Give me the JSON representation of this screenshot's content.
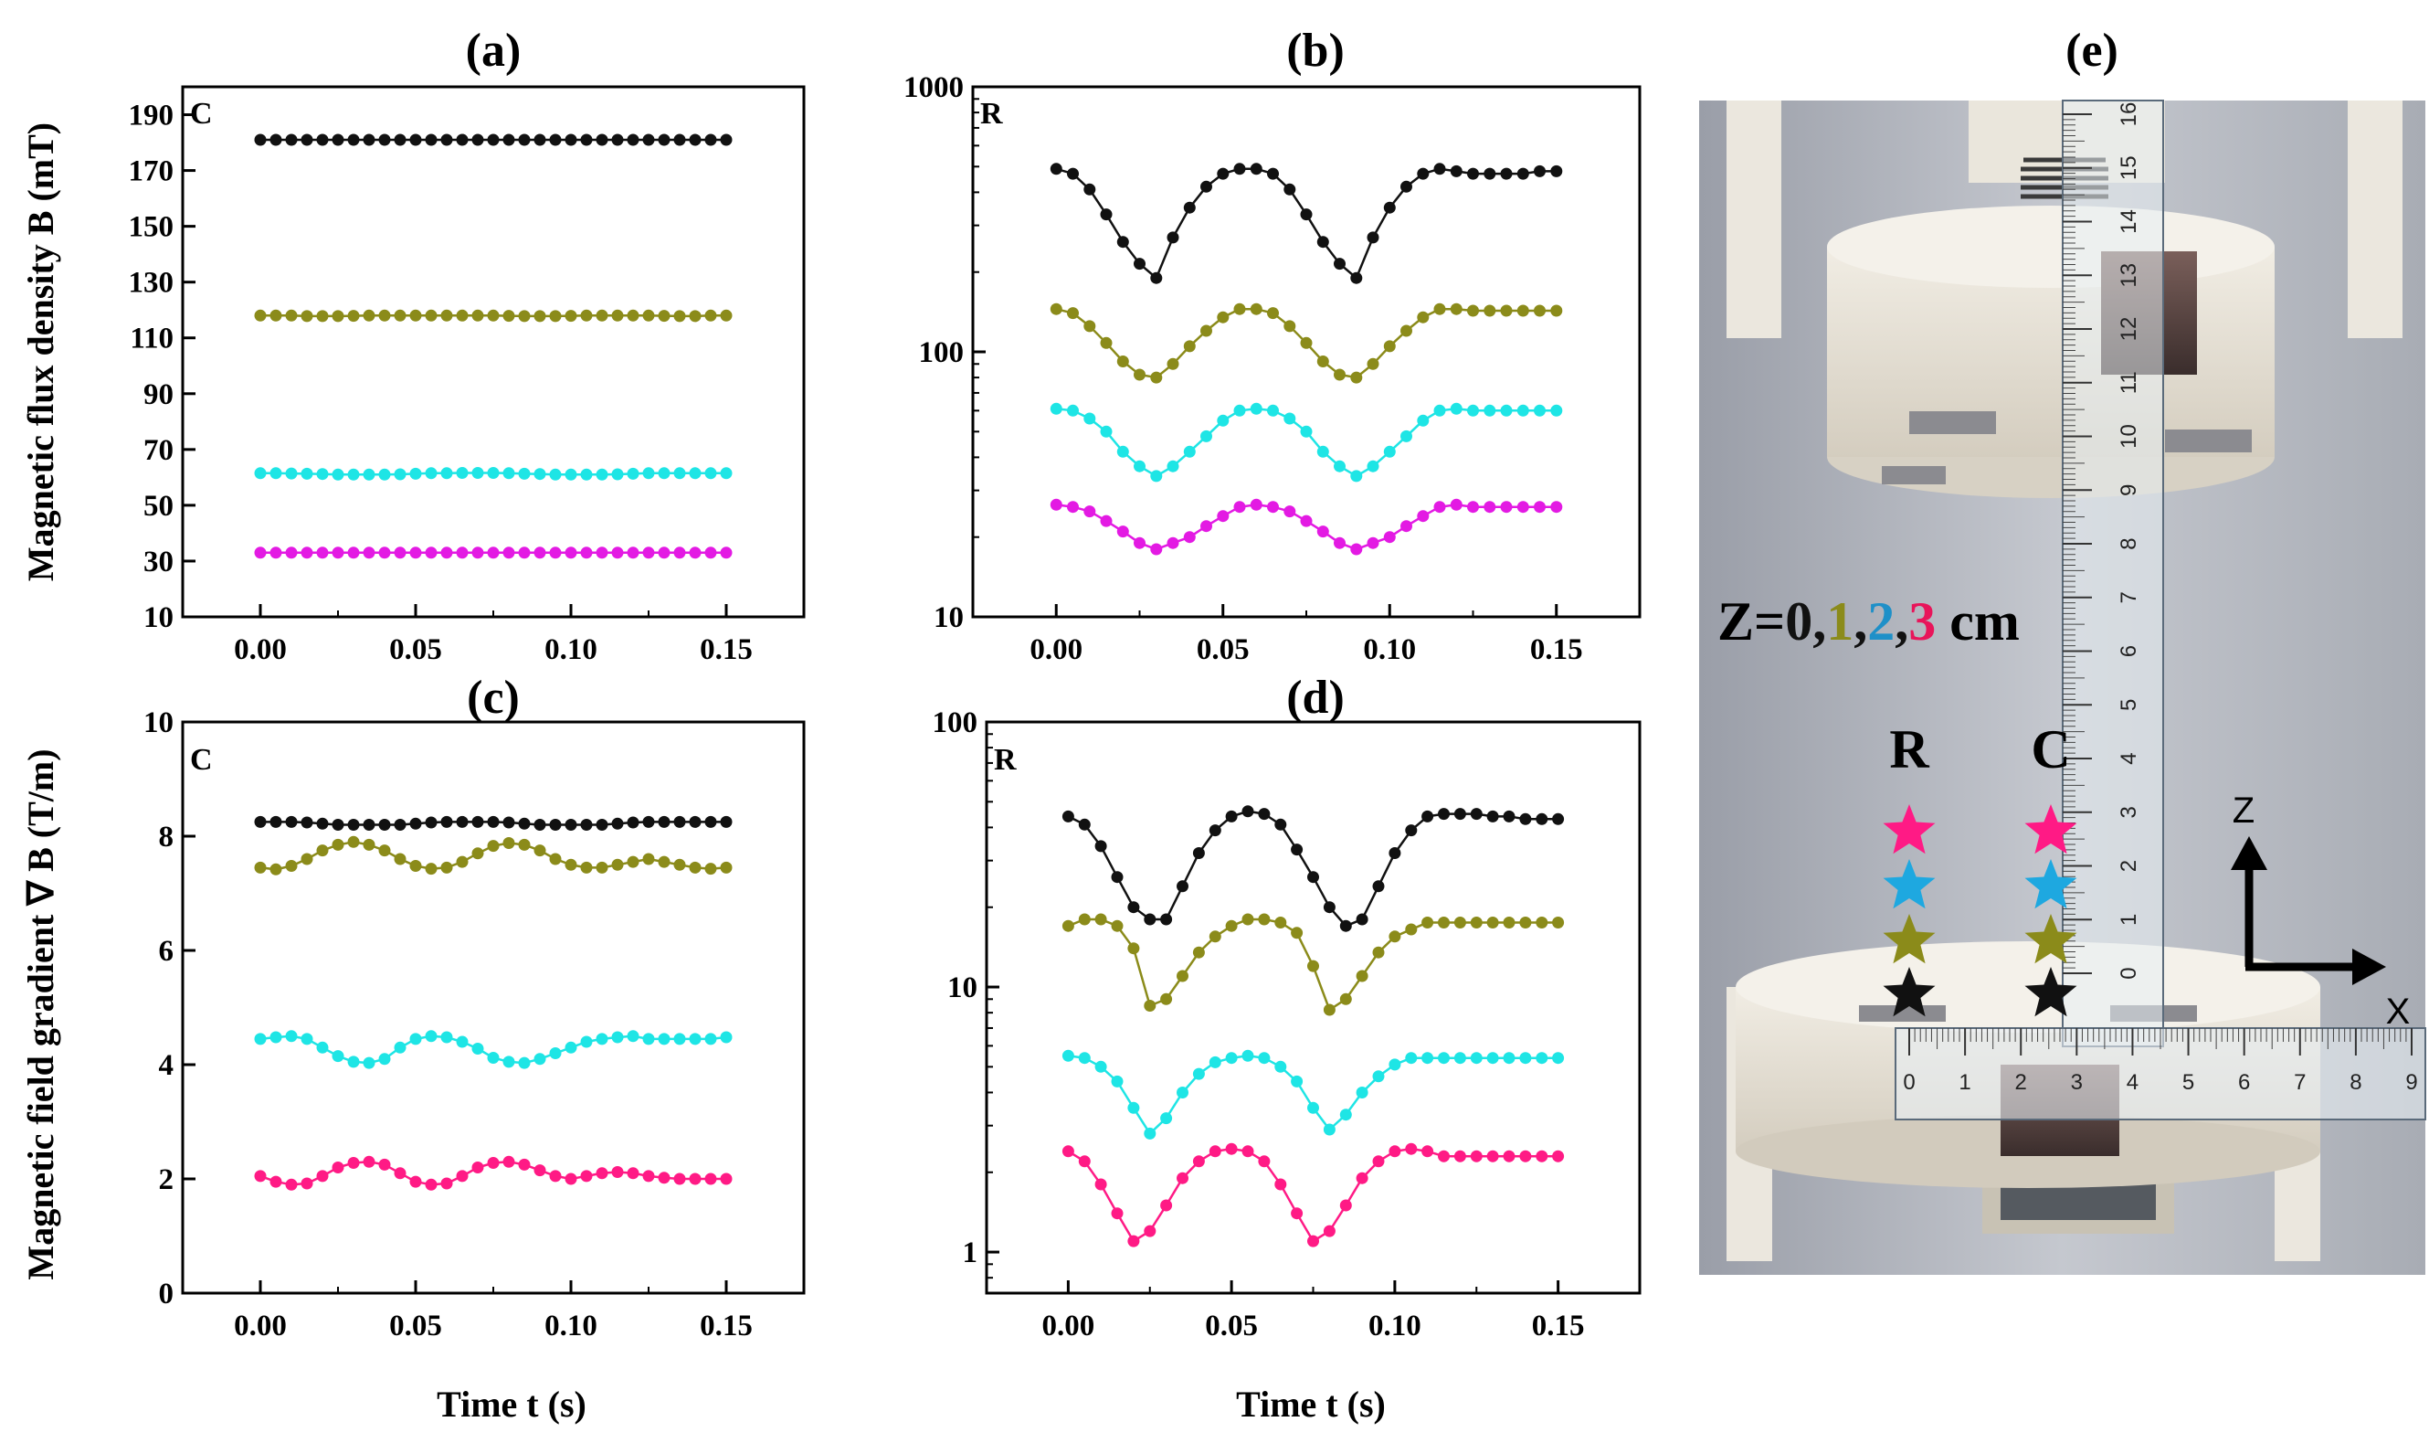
{
  "chart_data": [
    {
      "id": "a",
      "type": "line",
      "panel_label": "(a)",
      "corner_label": "C",
      "title": "",
      "xlabel": "",
      "ylabel": "Magnetic flux density B (mT)",
      "yscale": "linear",
      "xlim": [
        -0.025,
        0.175
      ],
      "ylim": [
        10,
        200
      ],
      "xticks": [
        0.0,
        0.05,
        0.1,
        0.15
      ],
      "xtick_labels": [
        "0.00",
        "0.05",
        "0.10",
        "0.15"
      ],
      "yticks": [
        10,
        30,
        50,
        70,
        90,
        110,
        130,
        150,
        170,
        190
      ],
      "ytick_labels": [
        "10",
        "30",
        "50",
        "70",
        "90",
        "110",
        "130",
        "150",
        "170",
        "190"
      ],
      "x_start": 0.0,
      "x_step": 0.005,
      "n_points": 31,
      "series": [
        {
          "name": "Z=0 cm",
          "color": "#111111",
          "values": [
            181,
            181,
            181,
            181,
            181,
            181,
            181,
            181,
            181,
            181,
            181,
            181,
            181,
            181,
            181,
            181,
            181,
            181,
            181,
            181,
            181,
            181,
            181,
            181,
            181,
            181,
            181,
            181,
            181,
            181,
            181
          ]
        },
        {
          "name": "Z=1 cm",
          "color": "#8b8b1a",
          "values": [
            118,
            118,
            118,
            117.8,
            117.8,
            117.8,
            117.9,
            118,
            118,
            118,
            118,
            118,
            118,
            118,
            118,
            118,
            117.9,
            117.8,
            117.8,
            117.8,
            117.9,
            118,
            118,
            118,
            118,
            118,
            117.9,
            117.8,
            117.8,
            118,
            118
          ]
        },
        {
          "name": "Z=2 cm",
          "color": "#1ee5e5",
          "values": [
            61.5,
            61.5,
            61.4,
            61.3,
            61.2,
            61,
            61,
            61,
            61,
            61.1,
            61.3,
            61.5,
            61.5,
            61.6,
            61.6,
            61.6,
            61.5,
            61.3,
            61.2,
            61,
            61,
            61,
            61,
            61.1,
            61.3,
            61.5,
            61.5,
            61.5,
            61.5,
            61.5,
            61.5
          ]
        },
        {
          "name": "Z=3 cm",
          "color": "#e31ae3",
          "values": [
            33,
            33,
            33,
            33,
            33,
            33,
            33,
            33,
            33,
            33,
            33,
            33,
            33,
            33,
            33,
            33,
            33,
            33,
            33,
            33,
            33,
            33,
            33,
            33,
            33,
            33,
            33,
            33,
            33,
            33,
            33
          ]
        }
      ]
    },
    {
      "id": "b",
      "type": "line",
      "panel_label": "(b)",
      "corner_label": "R",
      "title": "",
      "xlabel": "",
      "ylabel": "",
      "yscale": "log",
      "xlim": [
        -0.025,
        0.175
      ],
      "ylim": [
        10,
        1000
      ],
      "xticks": [
        0.0,
        0.05,
        0.1,
        0.15
      ],
      "xtick_labels": [
        "0.00",
        "0.05",
        "0.10",
        "0.15"
      ],
      "yticks": [
        10,
        100,
        1000
      ],
      "ytick_labels": [
        "10",
        "100",
        "1000"
      ],
      "x_start": 0.0,
      "x_step": 0.005,
      "n_points": 31,
      "series": [
        {
          "name": "Z=0 cm",
          "color": "#111111",
          "values": [
            490,
            470,
            410,
            330,
            260,
            215,
            190,
            270,
            350,
            420,
            470,
            490,
            490,
            470,
            410,
            330,
            260,
            215,
            190,
            270,
            350,
            420,
            470,
            490,
            480,
            470,
            470,
            470,
            470,
            480,
            480
          ]
        },
        {
          "name": "Z=1 cm",
          "color": "#8b8b1a",
          "values": [
            145,
            140,
            125,
            108,
            92,
            82,
            80,
            90,
            105,
            120,
            135,
            145,
            145,
            140,
            125,
            108,
            92,
            82,
            80,
            90,
            105,
            120,
            135,
            145,
            145,
            143,
            143,
            143,
            143,
            143,
            143
          ]
        },
        {
          "name": "Z=2 cm",
          "color": "#1ee5e5",
          "values": [
            61,
            60,
            56,
            50,
            42,
            37,
            34,
            37,
            42,
            48,
            55,
            60,
            61,
            60,
            56,
            50,
            42,
            37,
            34,
            37,
            42,
            48,
            55,
            60,
            61,
            60,
            60,
            60,
            60,
            60,
            60
          ]
        },
        {
          "name": "Z=3 cm",
          "color": "#e31ae3",
          "values": [
            26.5,
            26,
            25,
            23,
            21,
            19,
            18,
            19,
            20,
            22,
            24,
            26,
            26.5,
            26,
            25,
            23,
            21,
            19,
            18,
            19,
            20,
            22,
            24,
            26,
            26.5,
            26,
            26,
            26,
            26,
            26,
            26
          ]
        }
      ]
    },
    {
      "id": "c",
      "type": "line",
      "panel_label": "(c)",
      "corner_label": "C",
      "title": "",
      "xlabel": "Time t (s)",
      "ylabel": "Magnetic field gradient ∇ B (T/m)",
      "yscale": "linear",
      "xlim": [
        -0.025,
        0.175
      ],
      "ylim": [
        0,
        10
      ],
      "xticks": [
        0.0,
        0.05,
        0.1,
        0.15
      ],
      "xtick_labels": [
        "0.00",
        "0.05",
        "0.10",
        "0.15"
      ],
      "yticks": [
        0,
        2,
        4,
        6,
        8,
        10
      ],
      "ytick_labels": [
        "0",
        "2",
        "4",
        "6",
        "8",
        "10"
      ],
      "x_start": 0.0,
      "x_step": 0.005,
      "n_points": 31,
      "series": [
        {
          "name": "Z=0 cm",
          "color": "#111111",
          "values": [
            8.25,
            8.25,
            8.25,
            8.24,
            8.22,
            8.2,
            8.2,
            8.2,
            8.2,
            8.2,
            8.22,
            8.24,
            8.25,
            8.25,
            8.25,
            8.25,
            8.24,
            8.22,
            8.2,
            8.2,
            8.2,
            8.2,
            8.2,
            8.22,
            8.24,
            8.25,
            8.25,
            8.25,
            8.25,
            8.25,
            8.25
          ]
        },
        {
          "name": "Z=1 cm",
          "color": "#8b8b1a",
          "values": [
            7.45,
            7.42,
            7.48,
            7.6,
            7.75,
            7.85,
            7.9,
            7.85,
            7.75,
            7.6,
            7.48,
            7.43,
            7.45,
            7.55,
            7.7,
            7.83,
            7.88,
            7.85,
            7.75,
            7.6,
            7.5,
            7.45,
            7.45,
            7.5,
            7.55,
            7.6,
            7.55,
            7.5,
            7.45,
            7.43,
            7.45
          ]
        },
        {
          "name": "Z=2 cm",
          "color": "#1ee5e5",
          "values": [
            4.45,
            4.48,
            4.5,
            4.45,
            4.3,
            4.15,
            4.05,
            4.03,
            4.1,
            4.3,
            4.45,
            4.5,
            4.48,
            4.4,
            4.28,
            4.12,
            4.05,
            4.03,
            4.1,
            4.2,
            4.3,
            4.4,
            4.45,
            4.48,
            4.5,
            4.45,
            4.45,
            4.45,
            4.45,
            4.45,
            4.48
          ]
        },
        {
          "name": "Z=3 cm",
          "color": "#ff1a85",
          "values": [
            2.05,
            1.95,
            1.9,
            1.92,
            2.05,
            2.2,
            2.28,
            2.3,
            2.25,
            2.1,
            1.95,
            1.9,
            1.92,
            2.05,
            2.2,
            2.28,
            2.3,
            2.25,
            2.15,
            2.05,
            2.0,
            2.05,
            2.1,
            2.12,
            2.1,
            2.05,
            2.02,
            2.0,
            2.0,
            2.0,
            2.0
          ]
        }
      ]
    },
    {
      "id": "d",
      "type": "line",
      "panel_label": "(d)",
      "corner_label": "R",
      "title": "",
      "xlabel": "Time t (s)",
      "ylabel": "",
      "yscale": "log",
      "xlim": [
        -0.025,
        0.175
      ],
      "ylim": [
        0.7,
        100
      ],
      "xticks": [
        0.0,
        0.05,
        0.1,
        0.15
      ],
      "xtick_labels": [
        "0.00",
        "0.05",
        "0.10",
        "0.15"
      ],
      "yticks": [
        1,
        10,
        100
      ],
      "ytick_labels": [
        "1",
        "10",
        "100"
      ],
      "x_start": 0.0,
      "x_step": 0.005,
      "n_points": 31,
      "series": [
        {
          "name": "Z=0 cm",
          "color": "#111111",
          "values": [
            44,
            41,
            34,
            26,
            20,
            18,
            18,
            24,
            32,
            39,
            44,
            46,
            45,
            41,
            33,
            26,
            20,
            17,
            18,
            24,
            32,
            39,
            44,
            45,
            45,
            45,
            44,
            44,
            43,
            43,
            43
          ]
        },
        {
          "name": "Z=1 cm",
          "color": "#8b8b1a",
          "values": [
            17,
            18,
            18,
            17,
            14,
            8.5,
            9,
            11,
            13.5,
            15.5,
            17,
            18,
            18,
            17.5,
            16,
            12,
            8.2,
            9,
            11,
            13.5,
            15.5,
            16.5,
            17.5,
            17.5,
            17.5,
            17.5,
            17.5,
            17.5,
            17.5,
            17.5,
            17.5
          ]
        },
        {
          "name": "Z=2 cm",
          "color": "#1ee5e5",
          "values": [
            5.5,
            5.4,
            5.0,
            4.4,
            3.5,
            2.8,
            3.2,
            4.0,
            4.7,
            5.2,
            5.4,
            5.5,
            5.4,
            5.0,
            4.4,
            3.5,
            2.9,
            3.3,
            4.0,
            4.6,
            5.1,
            5.4,
            5.4,
            5.4,
            5.4,
            5.4,
            5.4,
            5.4,
            5.4,
            5.4,
            5.4
          ]
        },
        {
          "name": "Z=3 cm",
          "color": "#ff1a85",
          "values": [
            2.4,
            2.2,
            1.8,
            1.4,
            1.1,
            1.2,
            1.5,
            1.9,
            2.2,
            2.4,
            2.45,
            2.4,
            2.2,
            1.8,
            1.4,
            1.1,
            1.2,
            1.5,
            1.9,
            2.2,
            2.4,
            2.45,
            2.4,
            2.3,
            2.3,
            2.3,
            2.3,
            2.3,
            2.3,
            2.3,
            2.3
          ]
        }
      ]
    }
  ],
  "photo": {
    "panel_label": "(e)",
    "z_label_prefix": "Z=",
    "z_values": [
      {
        "text": "0",
        "color": "#111111"
      },
      {
        "text": ",",
        "color": "#111111"
      },
      {
        "text": "1",
        "color": "#8b8b1a"
      },
      {
        "text": ",",
        "color": "#111111"
      },
      {
        "text": "2",
        "color": "#1e90c8"
      },
      {
        "text": ",",
        "color": "#111111"
      },
      {
        "text": "3",
        "color": "#e8155a"
      }
    ],
    "z_label_unit": " cm",
    "col_r_label": "R",
    "col_c_label": "C",
    "axis_z": "Z",
    "axis_x": "X",
    "star_colors": [
      "#ff1a85",
      "#1ea8e0",
      "#8b8b1a",
      "#111111"
    ],
    "vertical_ruler_labels": [
      "0",
      "1",
      "2",
      "3",
      "4",
      "5",
      "6",
      "7",
      "8",
      "9",
      "10",
      "11",
      "12",
      "13",
      "14",
      "15",
      "16"
    ],
    "horizontal_ruler_labels": [
      "0",
      "1",
      "2",
      "3",
      "4",
      "5",
      "6",
      "7",
      "8",
      "9"
    ]
  }
}
